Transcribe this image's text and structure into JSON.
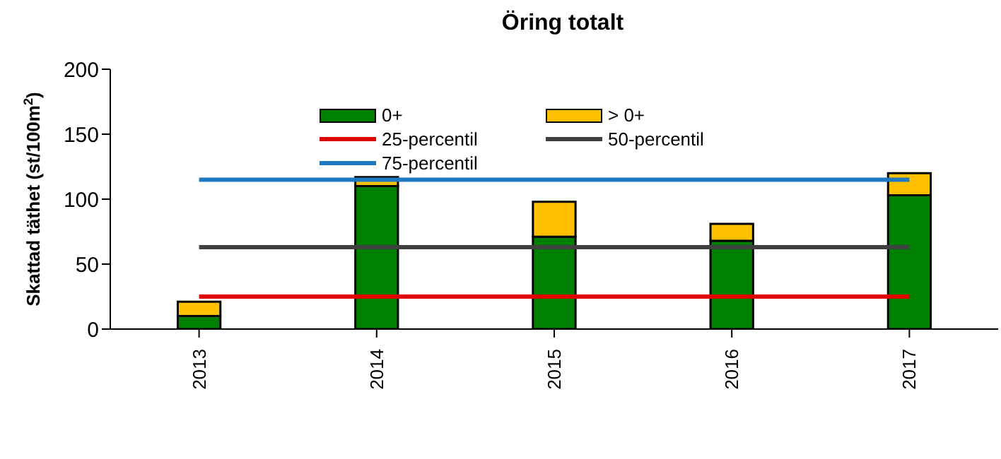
{
  "chart_data": {
    "type": "bar",
    "title": "Öring totalt",
    "ylabel": "Skattad täthet (st/100m$^{2}$)",
    "categories": [
      "2013",
      "2014",
      "2015",
      "2016",
      "2017"
    ],
    "stacked": true,
    "series": [
      {
        "name": "0+",
        "color": "#008000",
        "values": [
          10,
          110,
          71,
          68,
          103
        ]
      },
      {
        "name": "> 0+",
        "color": "#ffc000",
        "values": [
          11,
          7,
          27,
          13,
          17
        ]
      },
      {
        "name": "25-percentil",
        "type": "line",
        "color": "#e00000",
        "values": [
          25,
          25,
          25,
          25,
          25
        ]
      },
      {
        "name": "50-percentil",
        "type": "line",
        "color": "#404040",
        "values": [
          63,
          63,
          63,
          63,
          63
        ]
      },
      {
        "name": "75-percentil",
        "type": "line",
        "color": "#1f78c0",
        "values": [
          115,
          115,
          115,
          115,
          115
        ]
      }
    ],
    "ylim": [
      0,
      200
    ],
    "yticks": [
      0,
      50,
      100,
      150,
      200
    ],
    "grid": false,
    "legend": "top",
    "marker": "none"
  }
}
